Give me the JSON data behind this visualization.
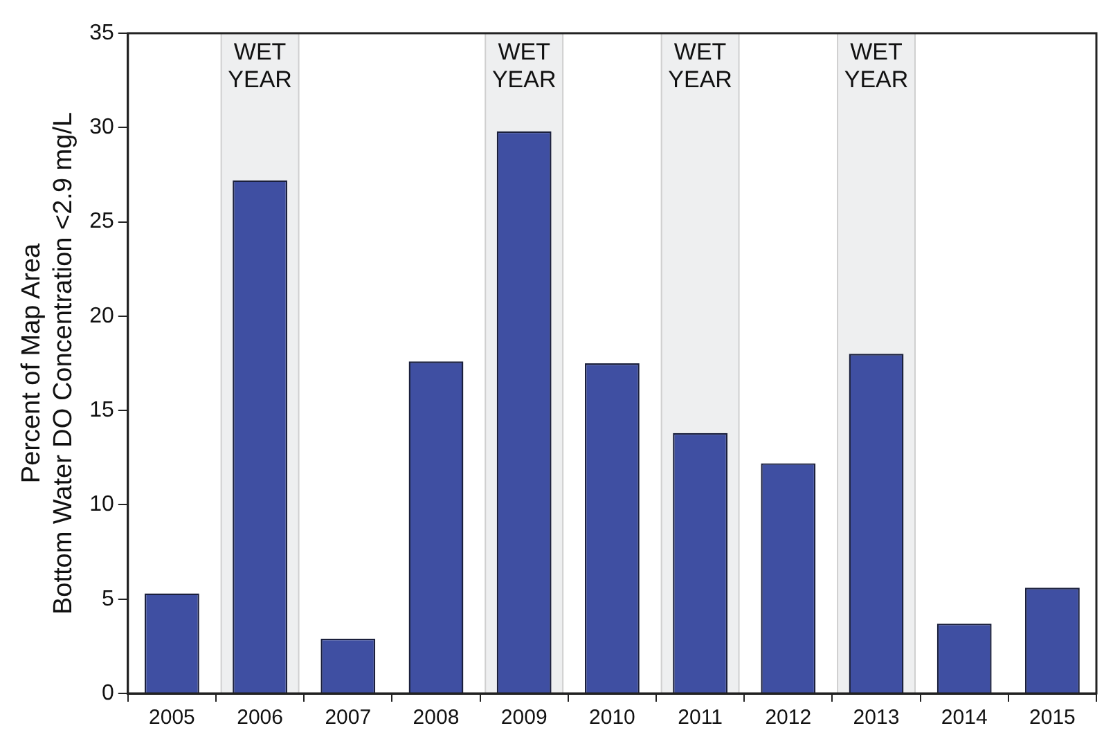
{
  "chart_data": {
    "type": "bar",
    "ylabel": "Percent of Map Area\nBottom Water DO Concentration <2.9 mg/L",
    "categories": [
      "2005",
      "2006",
      "2007",
      "2008",
      "2009",
      "2010",
      "2011",
      "2012",
      "2013",
      "2014",
      "2015"
    ],
    "values": [
      5.3,
      27.2,
      2.9,
      17.6,
      29.8,
      17.5,
      13.8,
      12.2,
      18.0,
      3.7,
      5.6
    ],
    "color": "#3f4fa2",
    "ylim": [
      0,
      35
    ],
    "yticks": [
      0,
      5,
      10,
      15,
      20,
      25,
      30,
      35
    ],
    "grid": false,
    "legend": false,
    "bands": [
      {
        "axis": "x",
        "from": "2006",
        "to": "2006",
        "label": "WET YEAR",
        "color": "#eeeff0"
      },
      {
        "axis": "x",
        "from": "2009",
        "to": "2009",
        "label": "WET YEAR",
        "color": "#eeeff0"
      },
      {
        "axis": "x",
        "from": "2011",
        "to": "2011",
        "label": "WET YEAR",
        "color": "#eeeff0"
      },
      {
        "axis": "x",
        "from": "2013",
        "to": "2013",
        "label": "WET YEAR",
        "color": "#eeeff0"
      }
    ]
  }
}
